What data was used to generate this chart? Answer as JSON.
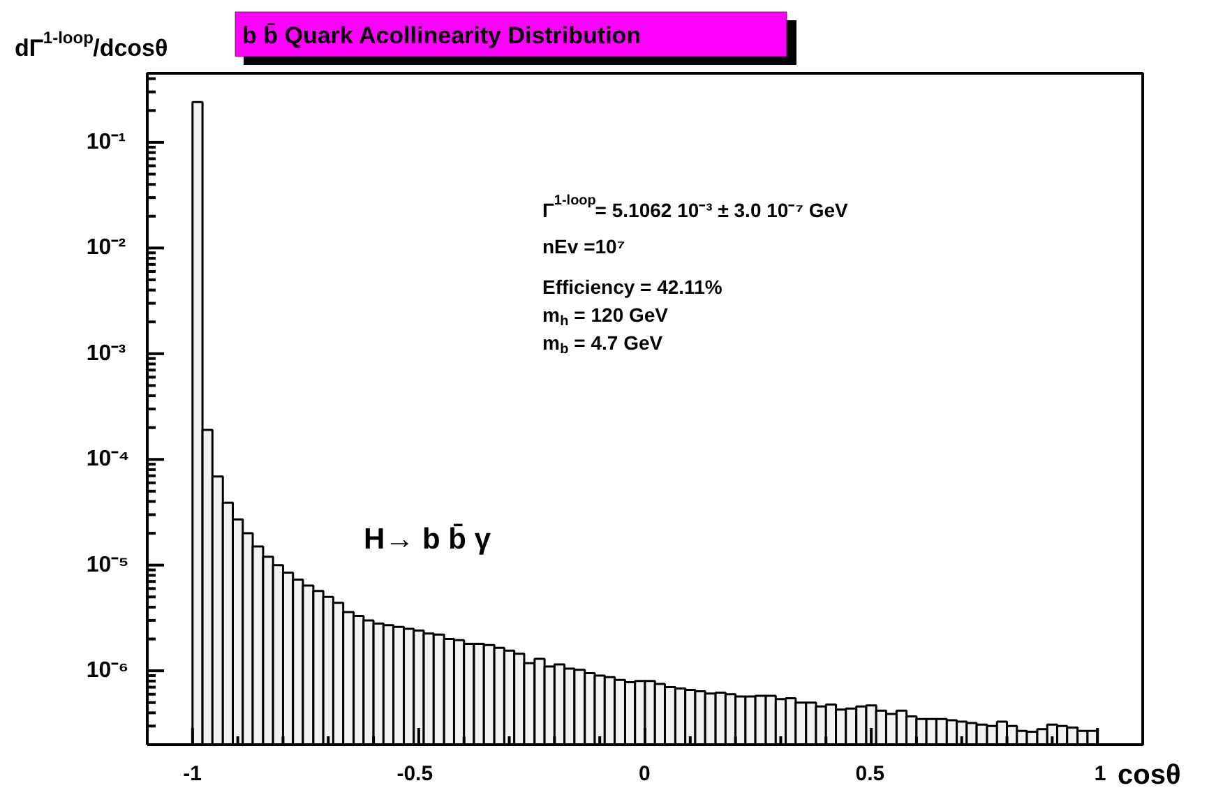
{
  "chart_data": {
    "type": "histogram",
    "title": "b b̄ Quark Acollinearity Distribution",
    "xlabel": "cosθ",
    "ylabel": "dΓ$^{1-loop}$/dcosθ",
    "bins": [
      -1,
      -0.978,
      -0.956,
      -0.933,
      -0.911,
      -0.889,
      -0.867,
      -0.844,
      -0.822,
      -0.8,
      -0.778,
      -0.756,
      -0.733,
      -0.711,
      -0.689,
      -0.667,
      -0.644,
      -0.622,
      -0.6,
      -0.578,
      -0.556,
      -0.533,
      -0.511,
      -0.489,
      -0.467,
      -0.444,
      -0.422,
      -0.4,
      -0.378,
      -0.356,
      -0.333,
      -0.311,
      -0.289,
      -0.267,
      -0.244,
      -0.222,
      -0.2,
      -0.178,
      -0.156,
      -0.133,
      -0.111,
      -0.089,
      -0.067,
      -0.044,
      -0.022,
      0,
      0.022,
      0.044,
      0.067,
      0.089,
      0.111,
      0.133,
      0.156,
      0.178,
      0.2,
      0.222,
      0.244,
      0.267,
      0.289,
      0.311,
      0.333,
      0.356,
      0.378,
      0.4,
      0.422,
      0.444,
      0.467,
      0.489,
      0.511,
      0.533,
      0.556,
      0.578,
      0.6,
      0.622,
      0.644,
      0.667,
      0.689,
      0.711,
      0.733,
      0.756,
      0.778,
      0.8,
      0.822,
      0.844,
      0.867,
      0.889,
      0.911,
      0.933,
      0.956,
      0.978,
      1
    ],
    "values": [
      0.24,
      0.00019,
      6.9e-05,
      3.9e-05,
      2.7e-05,
      2e-05,
      1.5e-05,
      1.2e-05,
      1e-05,
      8.5e-06,
      7.3e-06,
      6.4e-06,
      5.7e-06,
      5e-06,
      4.4e-06,
      3.6e-06,
      3.3e-06,
      3e-06,
      2.8e-06,
      2.7e-06,
      2.6e-06,
      2.5e-06,
      2.4e-06,
      2.25e-06,
      2.2e-06,
      2e-06,
      1.95e-06,
      1.8e-06,
      1.8e-06,
      1.75e-06,
      1.65e-06,
      1.55e-06,
      1.45e-06,
      1.18e-06,
      1.3e-06,
      1.1e-06,
      1.15e-06,
      1.05e-06,
      1.02e-06,
      9.5e-07,
      9e-07,
      8.7e-07,
      8.2e-07,
      7.8e-07,
      8e-07,
      8e-07,
      7.5e-07,
      7e-07,
      6.8e-07,
      6.6e-07,
      6.4e-07,
      6.1e-07,
      6.2e-07,
      6e-07,
      5.7e-07,
      5.7e-07,
      5.8e-07,
      5.8e-07,
      5.4e-07,
      5.5e-07,
      5e-07,
      5e-07,
      4.6e-07,
      4.8e-07,
      4.3e-07,
      4.4e-07,
      4.6e-07,
      4.7e-07,
      4.2e-07,
      3.9e-07,
      4.2e-07,
      3.7e-07,
      3.5e-07,
      3.5e-07,
      3.5e-07,
      3.4e-07,
      3.3e-07,
      3.2e-07,
      3.1e-07,
      3e-07,
      3.3e-07,
      3e-07,
      2.7e-07,
      2.65e-07,
      2.8e-07,
      3.1e-07,
      3e-07,
      2.9e-07,
      2.7e-07,
      2.7e-07
    ],
    "color": "#f2f2f2",
    "log": true,
    "xlim": [
      -1.1,
      1.1
    ],
    "ylim": [
      2e-07,
      0.45
    ],
    "xticks": [
      -1,
      -0.5,
      0,
      0.5,
      1
    ],
    "yticks": [
      {
        "value": 1e-06,
        "label": "10⁻⁶"
      },
      {
        "value": 1e-05,
        "label": "10⁻⁵"
      },
      {
        "value": 0.0001,
        "label": "10⁻⁴"
      },
      {
        "value": 0.001,
        "label": "10⁻³"
      },
      {
        "value": 0.01,
        "label": "10⁻²"
      },
      {
        "value": 0.1,
        "label": "10⁻¹"
      }
    ],
    "annotations": [
      "H→ b b̄ γ",
      "Γ$^{1-loop}$= 5.1062 10⁻³ ± 3.0 10⁻⁷ GeV",
      "nEv =10⁷",
      "Efficiency = 42.11%",
      "m$_{h}$ = 120 GeV",
      "m$_{b}$ = 4.7 GeV"
    ]
  }
}
